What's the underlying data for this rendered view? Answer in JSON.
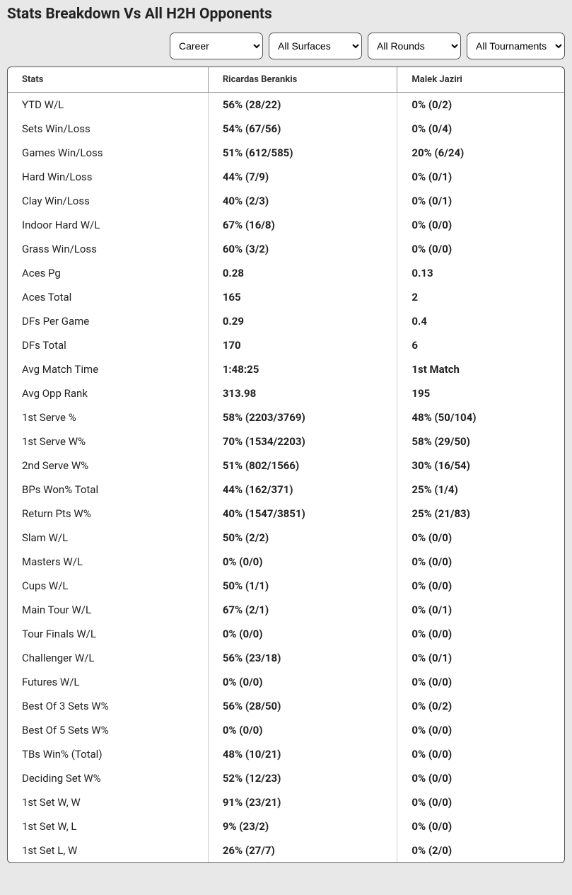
{
  "title": "Stats Breakdown Vs All H2H Opponents",
  "filters": {
    "period": [
      "Career"
    ],
    "surface": [
      "All Surfaces"
    ],
    "round": [
      "All Rounds"
    ],
    "tournament": [
      "All Tournaments"
    ]
  },
  "columns": [
    "Stats",
    "Ricardas Berankis",
    "Malek Jaziri"
  ],
  "rows": [
    {
      "label": "YTD W/L",
      "p1": "56% (28/22)",
      "p2": "0% (0/2)"
    },
    {
      "label": "Sets Win/Loss",
      "p1": "54% (67/56)",
      "p2": "0% (0/4)"
    },
    {
      "label": "Games Win/Loss",
      "p1": "51% (612/585)",
      "p2": "20% (6/24)"
    },
    {
      "label": "Hard Win/Loss",
      "p1": "44% (7/9)",
      "p2": "0% (0/1)"
    },
    {
      "label": "Clay Win/Loss",
      "p1": "40% (2/3)",
      "p2": "0% (0/1)"
    },
    {
      "label": "Indoor Hard W/L",
      "p1": "67% (16/8)",
      "p2": "0% (0/0)"
    },
    {
      "label": "Grass Win/Loss",
      "p1": "60% (3/2)",
      "p2": "0% (0/0)"
    },
    {
      "label": "Aces Pg",
      "p1": "0.28",
      "p2": "0.13"
    },
    {
      "label": "Aces Total",
      "p1": "165",
      "p2": "2"
    },
    {
      "label": "DFs Per Game",
      "p1": "0.29",
      "p2": "0.4"
    },
    {
      "label": "DFs Total",
      "p1": "170",
      "p2": "6"
    },
    {
      "label": "Avg Match Time",
      "p1": "1:48:25",
      "p2": "1st Match"
    },
    {
      "label": "Avg Opp Rank",
      "p1": "313.98",
      "p2": "195"
    },
    {
      "label": "1st Serve %",
      "p1": "58% (2203/3769)",
      "p2": "48% (50/104)"
    },
    {
      "label": "1st Serve W%",
      "p1": "70% (1534/2203)",
      "p2": "58% (29/50)"
    },
    {
      "label": "2nd Serve W%",
      "p1": "51% (802/1566)",
      "p2": "30% (16/54)"
    },
    {
      "label": "BPs Won% Total",
      "p1": "44% (162/371)",
      "p2": "25% (1/4)"
    },
    {
      "label": "Return Pts W%",
      "p1": "40% (1547/3851)",
      "p2": "25% (21/83)"
    },
    {
      "label": "Slam W/L",
      "p1": "50% (2/2)",
      "p2": "0% (0/0)"
    },
    {
      "label": "Masters W/L",
      "p1": "0% (0/0)",
      "p2": "0% (0/0)"
    },
    {
      "label": "Cups W/L",
      "p1": "50% (1/1)",
      "p2": "0% (0/0)"
    },
    {
      "label": "Main Tour W/L",
      "p1": "67% (2/1)",
      "p2": "0% (0/1)"
    },
    {
      "label": "Tour Finals W/L",
      "p1": "0% (0/0)",
      "p2": "0% (0/0)"
    },
    {
      "label": "Challenger W/L",
      "p1": "56% (23/18)",
      "p2": "0% (0/1)"
    },
    {
      "label": "Futures W/L",
      "p1": "0% (0/0)",
      "p2": "0% (0/0)"
    },
    {
      "label": "Best Of 3 Sets W%",
      "p1": "56% (28/50)",
      "p2": "0% (0/2)"
    },
    {
      "label": "Best Of 5 Sets W%",
      "p1": "0% (0/0)",
      "p2": "0% (0/0)"
    },
    {
      "label": "TBs Win% (Total)",
      "p1": "48% (10/21)",
      "p2": "0% (0/0)"
    },
    {
      "label": "Deciding Set W%",
      "p1": "52% (12/23)",
      "p2": "0% (0/0)"
    },
    {
      "label": "1st Set W, W",
      "p1": "91% (23/21)",
      "p2": "0% (0/0)"
    },
    {
      "label": "1st Set W, L",
      "p1": "9% (23/2)",
      "p2": "0% (0/0)"
    },
    {
      "label": "1st Set L, W",
      "p1": "26% (27/7)",
      "p2": "0% (2/0)"
    }
  ]
}
